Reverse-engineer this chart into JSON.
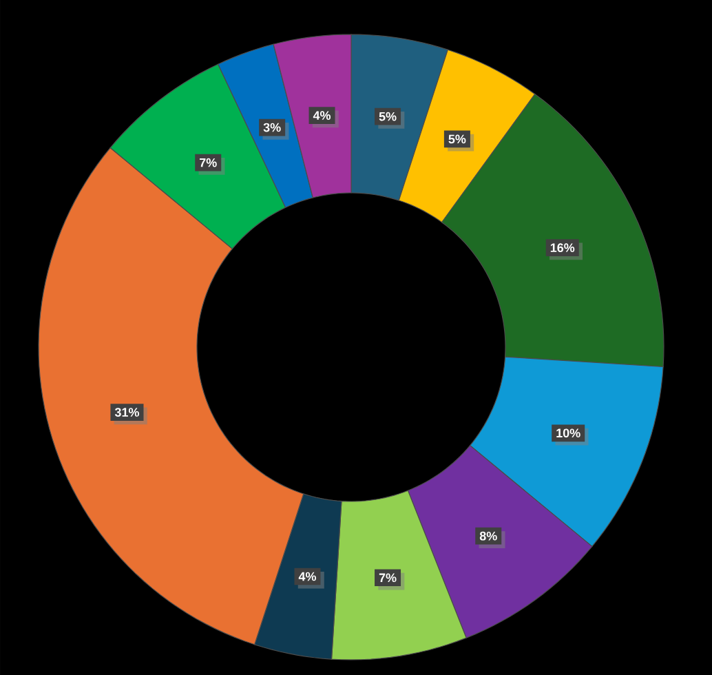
{
  "chart_data": {
    "type": "donut",
    "categories": [
      null,
      null,
      null,
      null,
      null,
      null,
      null,
      null,
      null,
      null,
      null
    ],
    "values": [
      5,
      5,
      16,
      10,
      8,
      7,
      4,
      31,
      7,
      3,
      4
    ],
    "value_labels": [
      "5%",
      "5%",
      "16%",
      "10%",
      "8%",
      "7%",
      "4%",
      "31%",
      "7%",
      "3%",
      "4%"
    ],
    "colors": [
      "#1f5f7f",
      "#ffc000",
      "#1e6b24",
      "#0f9ad6",
      "#7030a0",
      "#92d050",
      "#0e3a52",
      "#e97132",
      "#00b050",
      "#0070c0",
      "#a0329c"
    ]
  }
}
